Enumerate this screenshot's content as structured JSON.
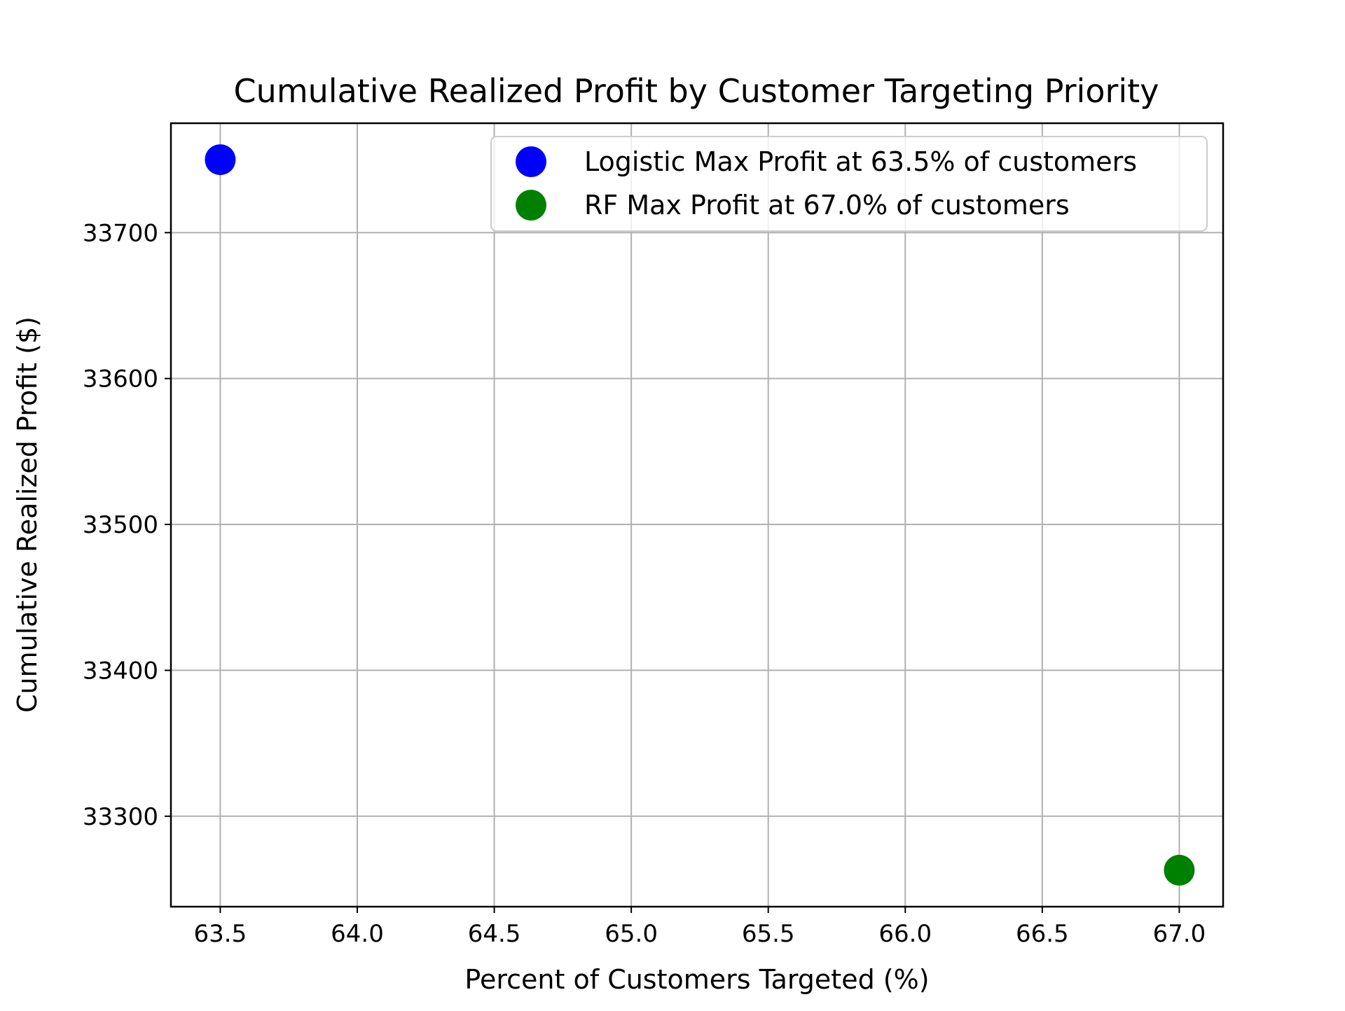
{
  "chart_data": {
    "type": "scatter",
    "title": "Cumulative Realized Profit by Customer Targeting Priority",
    "xlabel": "Percent of Customers Targeted (%)",
    "ylabel": "Cumulative Realized Profit ($)",
    "xlim": [
      63.32,
      67.16
    ],
    "ylim": [
      33238,
      33775
    ],
    "xticks": [
      63.5,
      64.0,
      64.5,
      65.0,
      65.5,
      66.0,
      66.5,
      67.0
    ],
    "xtick_labels": [
      "63.5",
      "64.0",
      "64.5",
      "65.0",
      "65.5",
      "66.0",
      "66.5",
      "67.0"
    ],
    "yticks": [
      33300,
      33400,
      33500,
      33600,
      33700
    ],
    "ytick_labels": [
      "33300",
      "33400",
      "33500",
      "33600",
      "33700"
    ],
    "grid": true,
    "legend_position": "top-right",
    "series": [
      {
        "name": "Logistic Max Profit at 63.5% of customers",
        "color": "#0000ff",
        "points": [
          {
            "x": 63.5,
            "y": 33750
          }
        ]
      },
      {
        "name": "RF Max Profit at 67.0% of customers",
        "color": "#008000",
        "points": [
          {
            "x": 67.0,
            "y": 33263
          }
        ]
      }
    ]
  }
}
